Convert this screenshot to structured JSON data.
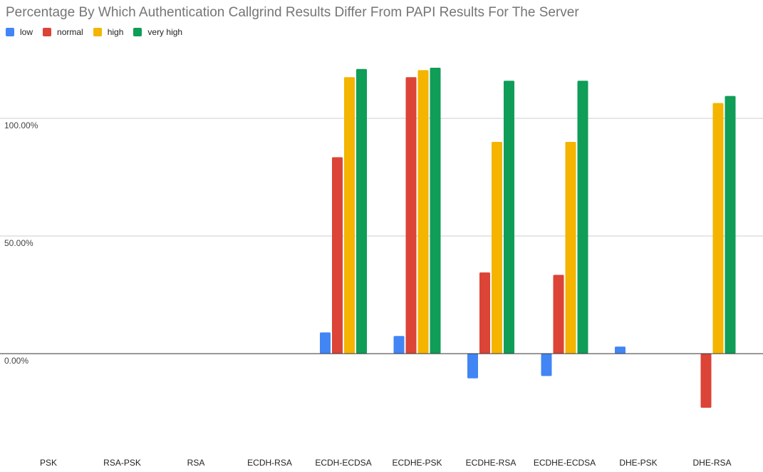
{
  "chart_data": {
    "type": "bar",
    "title": "Percentage By Which Authentication Callgrind Results Differ From PAPI Results For The Server",
    "xlabel": "",
    "ylabel": "",
    "categories": [
      "PSK",
      "RSA-PSK",
      "RSA",
      "ECDH-RSA",
      "ECDH-ECDSA",
      "ECDHE-PSK",
      "ECDHE-RSA",
      "ECDHE-ECDSA",
      "DHE-PSK",
      "DHE-RSA"
    ],
    "series": [
      {
        "name": "low",
        "color": "#4285F4",
        "values": [
          0,
          0,
          0,
          0,
          9,
          7.5,
          -10.5,
          -9.5,
          3,
          0
        ]
      },
      {
        "name": "normal",
        "color": "#DB4437",
        "values": [
          0,
          0,
          0,
          0,
          83.5,
          117.5,
          34.5,
          33.5,
          0,
          -23
        ]
      },
      {
        "name": "high",
        "color": "#F4B400",
        "values": [
          0,
          0,
          0,
          0,
          117.5,
          120.5,
          90,
          90,
          0,
          106.5
        ]
      },
      {
        "name": "very high",
        "color": "#0F9D58",
        "values": [
          0,
          0,
          0,
          0,
          121,
          121.5,
          116,
          116,
          0,
          109.5
        ]
      }
    ],
    "yticks": [
      0,
      50,
      100
    ],
    "ytick_labels": [
      "0.00%",
      "50.00%",
      "100.00%"
    ],
    "ylim": [
      -35,
      125
    ],
    "grid": true,
    "legend_position": "top-left"
  }
}
